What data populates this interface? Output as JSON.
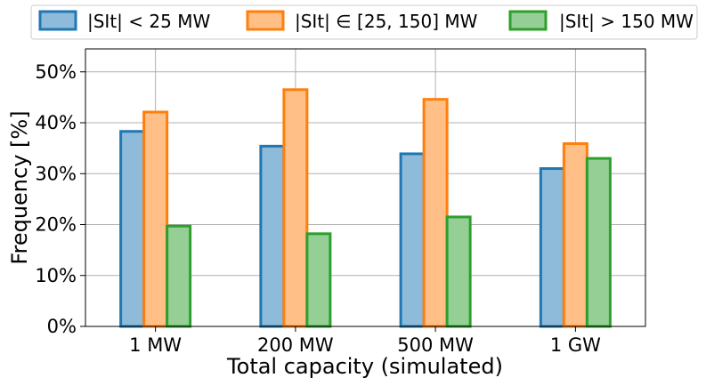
{
  "chart_data": {
    "type": "bar",
    "title": "",
    "xlabel": "Total capacity (simulated)",
    "ylabel": "Frequency [%]",
    "categories": [
      "1 MW",
      "200 MW",
      "500 MW",
      "1 GW"
    ],
    "ylim": [
      0,
      54.5
    ],
    "yticks": [
      0,
      10,
      20,
      30,
      40,
      50
    ],
    "ytick_labels": [
      "0%",
      "10%",
      "20%",
      "30%",
      "40%",
      "50%"
    ],
    "grid": true,
    "legend_position": "top, outside plot",
    "series": [
      {
        "name": "|SI_t| < 25 MW",
        "legend_label": "|SIt| < 25 MW",
        "values": [
          38.3,
          35.4,
          33.9,
          31.0
        ],
        "edge_color": "#1f77b4",
        "fill_color": "#8fbbda"
      },
      {
        "name": "|SI_t| ∈ [25, 150] MW",
        "legend_label": "|SIt| ∈ [25, 150] MW",
        "values": [
          42.1,
          46.5,
          44.6,
          35.9
        ],
        "edge_color": "#ff7f0e",
        "fill_color": "#ffbf86"
      },
      {
        "name": "|SI_t| > 150 MW",
        "legend_label": "|SIt| > 150 MW",
        "values": [
          19.7,
          18.2,
          21.5,
          33.0
        ],
        "edge_color": "#2ca02c",
        "fill_color": "#95cf95"
      }
    ]
  }
}
